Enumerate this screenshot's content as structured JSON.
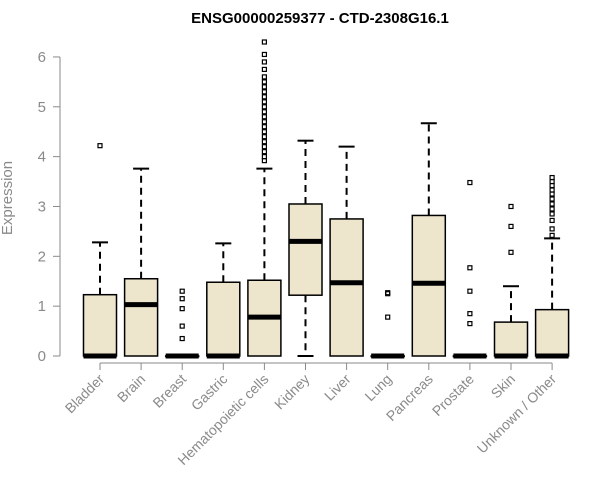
{
  "chart_data": {
    "type": "box",
    "title": "ENSG00000259377 - CTD-2308G16.1",
    "ylabel": "Expression",
    "ylim": [
      0,
      6.3
    ],
    "yticks": [
      0,
      1,
      2,
      3,
      4,
      5,
      6
    ],
    "fill_color": "#ede6cd",
    "categories": [
      "Bladder",
      "Brain",
      "Breast",
      "Gastric",
      "Hematopoietic cells",
      "Kidney",
      "Liver",
      "Lung",
      "Pancreas",
      "Prostate",
      "Skin",
      "Unknown / Other"
    ],
    "boxes": [
      {
        "q1": 0,
        "median": 0,
        "q3": 1.23,
        "whisker_low": 0,
        "whisker_high": 2.28,
        "outliers": [
          4.22
        ]
      },
      {
        "q1": 0,
        "median": 1.03,
        "q3": 1.55,
        "whisker_low": 0,
        "whisker_high": 3.76,
        "outliers": []
      },
      {
        "q1": 0,
        "median": 0,
        "q3": 0,
        "whisker_low": 0,
        "whisker_high": 0,
        "outliers": [
          0.35,
          0.6,
          0.95,
          1.15,
          1.3
        ]
      },
      {
        "q1": 0,
        "median": 0,
        "q3": 1.48,
        "whisker_low": 0,
        "whisker_high": 2.26,
        "outliers": []
      },
      {
        "q1": 0,
        "median": 0.78,
        "q3": 1.52,
        "whisker_low": 0,
        "whisker_high": 3.76,
        "outliers": [
          3.92,
          4.0,
          4.1,
          4.2,
          4.3,
          4.4,
          4.5,
          4.6,
          4.7,
          4.8,
          4.9,
          5.0,
          5.1,
          5.2,
          5.3,
          5.4,
          5.5,
          5.6,
          5.75,
          5.9,
          6.05,
          6.3
        ]
      },
      {
        "q1": 1.22,
        "median": 2.3,
        "q3": 3.05,
        "whisker_low": 0,
        "whisker_high": 4.32,
        "outliers": []
      },
      {
        "q1": 0,
        "median": 1.47,
        "q3": 2.75,
        "whisker_low": 0,
        "whisker_high": 4.2,
        "outliers": []
      },
      {
        "q1": 0,
        "median": 0,
        "q3": 0,
        "whisker_low": 0,
        "whisker_high": 0,
        "outliers": [
          0.78,
          1.25,
          1.27
        ]
      },
      {
        "q1": 0,
        "median": 1.46,
        "q3": 2.82,
        "whisker_low": 0,
        "whisker_high": 4.67,
        "outliers": []
      },
      {
        "q1": 0,
        "median": 0,
        "q3": 0,
        "whisker_low": 0,
        "whisker_high": 0,
        "outliers": [
          0.65,
          0.85,
          1.3,
          1.77,
          3.48
        ]
      },
      {
        "q1": 0,
        "median": 0,
        "q3": 0.68,
        "whisker_low": 0,
        "whisker_high": 1.4,
        "outliers": [
          2.08,
          2.6,
          3.0
        ]
      },
      {
        "q1": 0,
        "median": 0,
        "q3": 0.93,
        "whisker_low": 0,
        "whisker_high": 2.36,
        "outliers": [
          2.42,
          2.55,
          2.72,
          2.85,
          2.95,
          3.05,
          3.15,
          3.25,
          3.33,
          3.42,
          3.5,
          3.58
        ]
      }
    ]
  }
}
